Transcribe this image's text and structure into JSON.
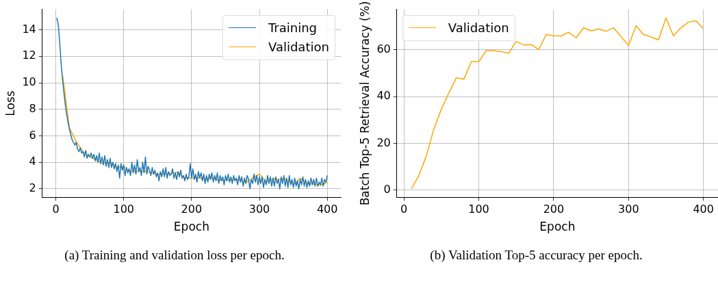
{
  "chart_data": [
    {
      "type": "line",
      "xlabel": "Epoch",
      "ylabel": "Loss",
      "xlim": [
        -20,
        420
      ],
      "ylim": [
        1.35,
        15.55
      ],
      "xticks": [
        0,
        100,
        200,
        300,
        400
      ],
      "yticks": [
        2,
        4,
        6,
        8,
        10,
        12,
        14
      ],
      "grid": true,
      "legend": "top right",
      "annotations": [
        "(a) Training and validation loss per epoch."
      ],
      "series": [
        {
          "name": "Training",
          "color": "#1f77b4",
          "x": [
            1,
            2,
            4,
            6,
            8,
            10,
            12,
            14,
            16,
            18,
            20,
            22,
            24,
            26,
            28,
            30,
            32,
            34,
            36,
            38,
            40,
            42,
            44,
            46,
            48,
            50,
            52,
            54,
            56,
            58,
            60,
            62,
            64,
            66,
            68,
            70,
            72,
            74,
            76,
            78,
            80,
            82,
            84,
            86,
            88,
            90,
            92,
            94,
            96,
            98,
            100,
            102,
            104,
            106,
            108,
            110,
            112,
            114,
            116,
            118,
            120,
            122,
            124,
            126,
            128,
            130,
            132,
            134,
            136,
            138,
            140,
            142,
            144,
            146,
            148,
            150,
            152,
            154,
            156,
            158,
            160,
            162,
            164,
            166,
            168,
            170,
            172,
            174,
            176,
            178,
            180,
            182,
            184,
            186,
            188,
            190,
            192,
            194,
            196,
            198,
            200,
            202,
            204,
            206,
            208,
            210,
            212,
            214,
            216,
            218,
            220,
            222,
            224,
            226,
            228,
            230,
            232,
            234,
            236,
            238,
            240,
            242,
            244,
            246,
            248,
            250,
            252,
            254,
            256,
            258,
            260,
            262,
            264,
            266,
            268,
            270,
            272,
            274,
            276,
            278,
            280,
            282,
            284,
            286,
            288,
            290,
            292,
            294,
            296,
            298,
            300,
            302,
            304,
            306,
            308,
            310,
            312,
            314,
            316,
            318,
            320,
            322,
            324,
            326,
            328,
            330,
            332,
            334,
            336,
            338,
            340,
            342,
            344,
            346,
            348,
            350,
            352,
            354,
            356,
            358,
            360,
            362,
            364,
            366,
            368,
            370,
            372,
            374,
            376,
            378,
            380,
            382,
            384,
            386,
            388,
            390,
            392,
            394,
            396,
            398,
            400
          ],
          "values": [
            14.9,
            14.8,
            14.2,
            12.8,
            11.3,
            10.2,
            9.2,
            8.3,
            7.6,
            7.0,
            6.5,
            6.1,
            5.7,
            5.5,
            5.3,
            5.5,
            5.0,
            4.8,
            5.1,
            4.7,
            4.8,
            4.4,
            4.9,
            4.3,
            4.6,
            4.4,
            4.7,
            4.3,
            4.6,
            4.1,
            4.5,
            4.0,
            4.7,
            3.9,
            4.4,
            3.8,
            4.5,
            3.7,
            4.2,
            3.6,
            4.3,
            3.6,
            4.0,
            3.5,
            3.9,
            3.3,
            3.8,
            2.8,
            3.9,
            3.4,
            3.8,
            3.0,
            3.6,
            3.2,
            3.5,
            3.0,
            4.0,
            3.2,
            3.8,
            3.1,
            4.2,
            3.3,
            3.6,
            3.0,
            4.0,
            3.2,
            4.4,
            3.1,
            3.7,
            3.4,
            3.0,
            3.6,
            3.1,
            3.4,
            2.9,
            3.2,
            2.6,
            3.3,
            2.9,
            3.5,
            2.9,
            3.6,
            2.8,
            3.3,
            3.0,
            3.1,
            3.5,
            2.8,
            3.2,
            2.7,
            3.3,
            2.9,
            3.4,
            2.8,
            3.0,
            2.6,
            3.1,
            2.7,
            2.9,
            3.9,
            2.8,
            3.5,
            2.7,
            3.1,
            2.5,
            3.3,
            2.8,
            3.2,
            2.6,
            3.1,
            2.4,
            3.0,
            2.5,
            3.1,
            2.7,
            3.2,
            2.5,
            3.0,
            2.6,
            3.2,
            2.4,
            3.0,
            2.6,
            2.9,
            2.3,
            3.0,
            2.6,
            3.1,
            2.5,
            2.9,
            2.4,
            3.0,
            2.6,
            2.8,
            2.3,
            3.0,
            2.5,
            2.9,
            2.2,
            2.8,
            2.4,
            3.0,
            2.7,
            2.0,
            2.7,
            2.4,
            3.1,
            2.5,
            3.0,
            2.3,
            2.9,
            2.4,
            2.9,
            2.1,
            2.7,
            2.3,
            3.0,
            2.4,
            2.9,
            2.2,
            2.8,
            2.2,
            2.9,
            2.4,
            2.7,
            2.0,
            2.9,
            2.4,
            3.0,
            2.2,
            2.8,
            2.1,
            3.0,
            2.3,
            2.7,
            2.1,
            2.8,
            2.2,
            2.6,
            2.0,
            2.7,
            2.3,
            2.9,
            2.2,
            2.7,
            2.1,
            2.6,
            2.2,
            2.8,
            2.3,
            2.7,
            2.2,
            2.8,
            2.2,
            2.5,
            2.3,
            2.8,
            2.2,
            2.7,
            2.5,
            3.0
          ]
        },
        {
          "name": "Validation",
          "color": "#ffa500",
          "x": [
            10,
            20,
            30,
            40,
            50,
            60,
            70,
            80,
            90,
            100,
            110,
            120,
            130,
            140,
            150,
            160,
            170,
            180,
            190,
            200,
            210,
            220,
            230,
            240,
            250,
            260,
            270,
            280,
            290,
            300,
            310,
            320,
            330,
            340,
            350,
            360,
            370,
            380,
            390,
            400
          ],
          "values": [
            10.56,
            6.6,
            5.56,
            4.8,
            4.42,
            4.17,
            3.9,
            4.0,
            3.6,
            3.67,
            3.32,
            3.29,
            3.33,
            3.24,
            3.06,
            3.14,
            3.17,
            3.26,
            2.8,
            2.83,
            2.83,
            2.71,
            2.82,
            2.64,
            2.65,
            2.68,
            2.68,
            2.45,
            2.83,
            3.1,
            2.5,
            2.76,
            2.71,
            2.71,
            2.3,
            2.8,
            2.41,
            2.35,
            2.26,
            2.48
          ]
        }
      ]
    },
    {
      "type": "line",
      "xlabel": "Epoch",
      "ylabel": "Batch Top-5 Retrieval Accuracy (%)",
      "xlim": [
        -9.5,
        419.5
      ],
      "ylim": [
        -3.1,
        77.4
      ],
      "xticks": [
        0,
        100,
        200,
        300,
        400
      ],
      "yticks": [
        0,
        20,
        40,
        60
      ],
      "grid": true,
      "legend": "top left",
      "annotations": [
        "(b) Validation Top-5 accuracy per epoch."
      ],
      "series": [
        {
          "name": "Validation",
          "color": "#ffa500",
          "x": [
            10,
            20,
            30,
            40,
            50,
            60,
            70,
            80,
            90,
            100,
            110,
            120,
            130,
            140,
            150,
            160,
            170,
            180,
            190,
            200,
            210,
            220,
            230,
            240,
            250,
            260,
            270,
            280,
            290,
            300,
            310,
            320,
            330,
            340,
            350,
            360,
            370,
            380,
            390,
            400
          ],
          "values": [
            0.6,
            6.3,
            14.7,
            26.2,
            34.7,
            41.6,
            48.1,
            47.5,
            55.0,
            55.0,
            59.7,
            59.7,
            59.3,
            58.6,
            63.7,
            62.1,
            62.3,
            60.2,
            66.6,
            66.1,
            66.0,
            67.6,
            65.2,
            69.5,
            68.2,
            69.0,
            68.0,
            69.5,
            65.7,
            61.9,
            70.3,
            66.6,
            65.6,
            64.3,
            73.7,
            66.0,
            69.5,
            71.9,
            72.5,
            69.1
          ]
        }
      ]
    }
  ]
}
